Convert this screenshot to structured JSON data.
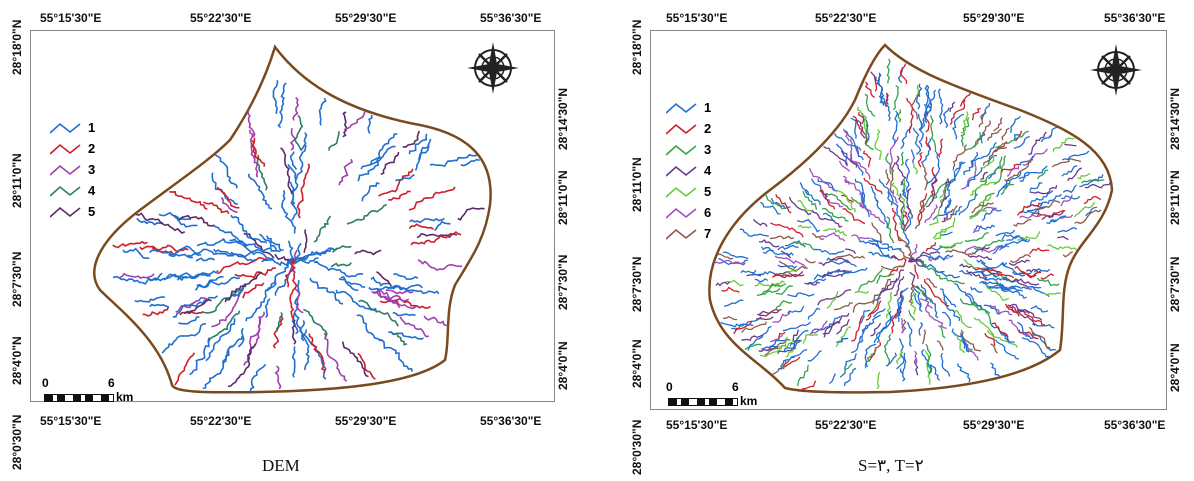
{
  "left_panel": {
    "top_ticks": [
      "55°15'30\"E",
      "55°22'30\"E",
      "55°29'30\"E",
      "55°36'30\"E"
    ],
    "bottom_ticks": [
      "55°15'30\"E",
      "55°22'30\"E",
      "55°29'30\"E",
      "55°36'30\"E"
    ],
    "left_ticks": [
      "28°18'0\"N",
      "28°14'30\"N",
      "28°11'0\"N",
      "28°7'30\"N",
      "28°4'0\"N",
      "28°0'30\"N"
    ],
    "right_ticks": [
      "28°14'30\"N",
      "28°11'0\"N",
      "28°7'30\"N",
      "28°4'0\"N"
    ],
    "legend": [
      "1",
      "2",
      "3",
      "4",
      "5"
    ],
    "scale": {
      "zero": "0",
      "six": "6",
      "unit": "km"
    },
    "caption": "DEM"
  },
  "right_panel": {
    "top_ticks": [
      "55°15'30\"E",
      "55°22'30\"E",
      "55°29'30\"E",
      "55°36'30\"E"
    ],
    "bottom_ticks": [
      "55°15'30\"E",
      "55°22'30\"E",
      "55°29'30\"E",
      "55°36'30\"E"
    ],
    "left_ticks": [
      "28°18'0\"N",
      "28°14'30\"N",
      "28°11'0\"N",
      "28°7'30\"N",
      "28°4'0\"N",
      "28°0'30\"N"
    ],
    "right_ticks": [
      "28°14'30\"N",
      "28°11'0\"N",
      "28°7'30\"N",
      "28°4'0\"N"
    ],
    "legend": [
      "1",
      "2",
      "3",
      "4",
      "5",
      "6",
      "7"
    ],
    "scale": {
      "zero": "0",
      "six": "6",
      "unit": "km"
    },
    "caption": "S=۳, T=۲"
  },
  "colors": {
    "order1": "#1f6fd0",
    "order2": "#cc1f2a",
    "order3": "#a040b0",
    "order4": "#2e7d6a",
    "order5": "#5a2a6a",
    "order5_right": "#66cc33",
    "order6_right": "#a050c0",
    "order7_right": "#8a5a4a",
    "order3_right": "#33a24a",
    "order4_right": "#6a3a8a",
    "boundary": "#7a4a1e"
  },
  "icons": {
    "north_arrow": "compass-rose-icon"
  }
}
